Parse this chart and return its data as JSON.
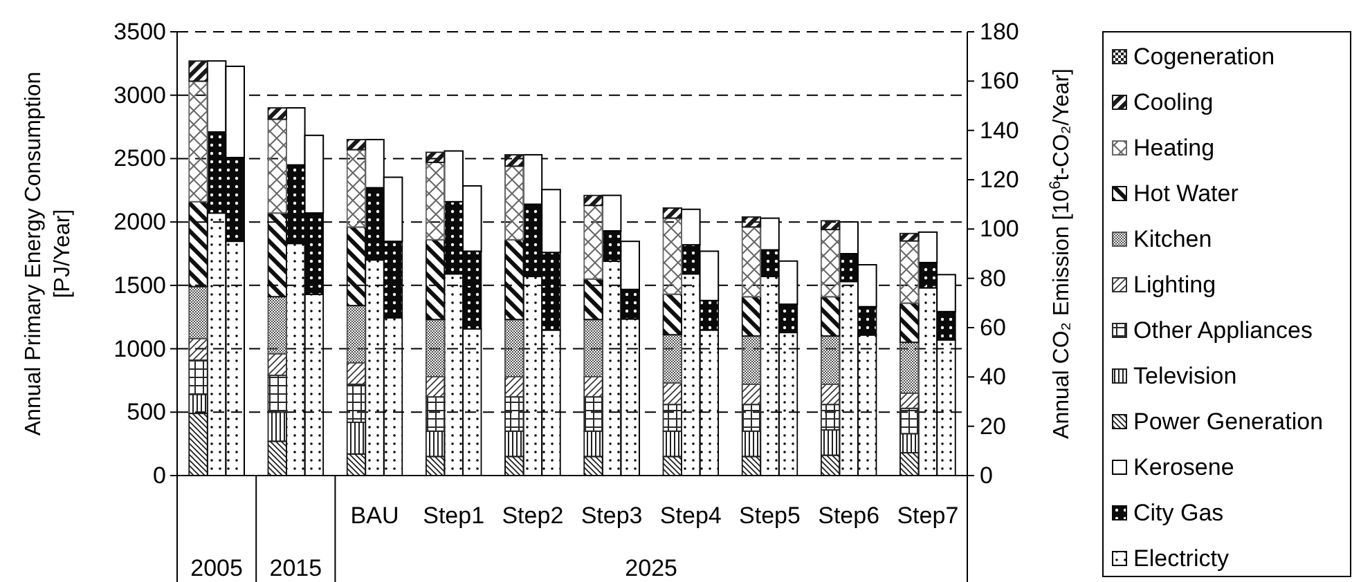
{
  "chart_data": {
    "type": "bar",
    "stacked": true,
    "categories": [
      null,
      null,
      null,
      null,
      null,
      null,
      null,
      "BAU",
      null,
      null,
      "Step1",
      null,
      null,
      "Step2",
      null,
      null,
      "Step3",
      null,
      null,
      "Step4",
      null,
      null,
      "Step5",
      null,
      null,
      "Step6",
      null,
      null,
      "Step7",
      null
    ],
    "annotations": [
      "2005",
      "2015",
      "2025"
    ],
    "ylabel": "Annual Primary Energy Consumption [PJ/Year]",
    "y2label": "Annual CO₂ Emission [10$^{6}$t-CO₂/Year]",
    "ylim": [
      0,
      3500
    ],
    "yticks": [
      0,
      500,
      1000,
      1500,
      2000,
      2500,
      3000,
      3500
    ],
    "y2lim": [
      0,
      180
    ],
    "y2ticks": [
      0,
      20,
      40,
      60,
      80,
      100,
      120,
      140,
      160,
      180
    ],
    "grid": "y",
    "legend": "right",
    "series": [
      {
        "name": "Electricty",
        "color": "#000000",
        "values": [
          null,
          2070,
          null,
          null,
          1830,
          null,
          null,
          1700,
          null,
          null,
          1590,
          null,
          null,
          1570,
          null,
          null,
          1690,
          null,
          null,
          1590,
          null,
          null,
          1570,
          null,
          null,
          1530,
          null,
          null,
          1480,
          null
        ]
      },
      {
        "name": "City Gas",
        "color": "#0a0a0a",
        "values": [
          null,
          640,
          null,
          null,
          620,
          null,
          null,
          570,
          null,
          null,
          570,
          null,
          null,
          570,
          null,
          null,
          240,
          null,
          null,
          230,
          null,
          null,
          210,
          null,
          null,
          220,
          null,
          null,
          200,
          null
        ]
      },
      {
        "name": "Kerosene",
        "color": "#ffffff",
        "values": [
          null,
          560,
          null,
          null,
          450,
          null,
          null,
          380,
          null,
          null,
          400,
          null,
          null,
          390,
          null,
          null,
          280,
          null,
          null,
          280,
          null,
          null,
          250,
          null,
          null,
          250,
          null,
          null,
          240,
          null
        ]
      },
      {
        "name": "Power Generation",
        "color": "#141414",
        "values": [
          490,
          null,
          null,
          270,
          null,
          null,
          170,
          null,
          null,
          150,
          null,
          null,
          150,
          null,
          null,
          150,
          null,
          null,
          150,
          null,
          null,
          150,
          null,
          null,
          160,
          null,
          null,
          180,
          null,
          null
        ]
      },
      {
        "name": "Television",
        "color": "#1e1e1e",
        "values": [
          150,
          null,
          null,
          230,
          null,
          null,
          250,
          null,
          null,
          200,
          null,
          null,
          200,
          null,
          null,
          200,
          null,
          null,
          200,
          null,
          null,
          200,
          null,
          null,
          200,
          null,
          null,
          150,
          null,
          null
        ]
      },
      {
        "name": "Other Appliances",
        "color": "#282828",
        "values": [
          270,
          null,
          null,
          290,
          null,
          null,
          300,
          null,
          null,
          270,
          null,
          null,
          270,
          null,
          null,
          270,
          null,
          null,
          210,
          null,
          null,
          210,
          null,
          null,
          200,
          null,
          null,
          200,
          null,
          null
        ]
      },
      {
        "name": "Lighting",
        "color": "#323232",
        "values": [
          170,
          null,
          null,
          170,
          null,
          null,
          170,
          null,
          null,
          160,
          null,
          null,
          160,
          null,
          null,
          160,
          null,
          null,
          170,
          null,
          null,
          160,
          null,
          null,
          160,
          null,
          null,
          120,
          null,
          null
        ]
      },
      {
        "name": "Kitchen",
        "color": "#505050",
        "values": [
          410,
          null,
          null,
          450,
          null,
          null,
          450,
          null,
          null,
          450,
          null,
          null,
          450,
          null,
          null,
          450,
          null,
          null,
          380,
          null,
          null,
          380,
          null,
          null,
          380,
          null,
          null,
          400,
          null,
          null
        ]
      },
      {
        "name": "Hot Water",
        "color": "#0f0f0f",
        "values": [
          670,
          null,
          null,
          660,
          null,
          null,
          620,
          null,
          null,
          630,
          null,
          null,
          630,
          null,
          null,
          320,
          null,
          null,
          320,
          null,
          null,
          310,
          null,
          null,
          310,
          null,
          null,
          310,
          null,
          null
        ]
      },
      {
        "name": "Heating",
        "color": "#666666",
        "values": [
          950,
          null,
          null,
          740,
          null,
          null,
          610,
          null,
          null,
          610,
          null,
          null,
          580,
          null,
          null,
          580,
          null,
          null,
          600,
          null,
          null,
          550,
          null,
          null,
          530,
          null,
          null,
          490,
          null,
          null
        ]
      },
      {
        "name": "Cooling",
        "color": "#191919",
        "values": [
          160,
          null,
          null,
          90,
          null,
          null,
          80,
          null,
          null,
          80,
          null,
          null,
          90,
          null,
          null,
          80,
          null,
          null,
          80,
          null,
          null,
          80,
          null,
          null,
          70,
          null,
          null,
          60,
          null,
          null
        ]
      },
      {
        "name": "Cogeneration",
        "color": "#232323",
        "values": [
          0,
          null,
          null,
          0,
          null,
          null,
          0,
          null,
          null,
          0,
          null,
          null,
          0,
          null,
          null,
          0,
          null,
          null,
          0,
          null,
          null,
          0,
          null,
          null,
          0,
          null,
          null,
          0,
          null,
          null
        ]
      },
      {
        "color": "#000000",
        "axis": "y2",
        "values": [
          null,
          null,
          95,
          null,
          null,
          73.5,
          null,
          null,
          64,
          null,
          null,
          59.5,
          null,
          null,
          59,
          null,
          null,
          63.5,
          null,
          null,
          59,
          null,
          null,
          58,
          null,
          null,
          57,
          null,
          null,
          55
        ]
      },
      {
        "color": "#0a0a0a",
        "axis": "y2",
        "values": [
          null,
          null,
          34,
          null,
          null,
          33,
          null,
          null,
          31,
          null,
          null,
          31.5,
          null,
          null,
          31.5,
          null,
          null,
          12,
          null,
          null,
          12,
          null,
          null,
          11.5,
          null,
          null,
          11.5,
          null,
          null,
          11.5
        ]
      },
      {
        "color": "#ffffff",
        "axis": "y2",
        "values": [
          null,
          null,
          37,
          null,
          null,
          31.5,
          null,
          null,
          26,
          null,
          null,
          26.5,
          null,
          null,
          25.5,
          null,
          null,
          19.5,
          null,
          null,
          20,
          null,
          null,
          17.5,
          null,
          null,
          17,
          null,
          null,
          15
        ]
      }
    ]
  }
}
